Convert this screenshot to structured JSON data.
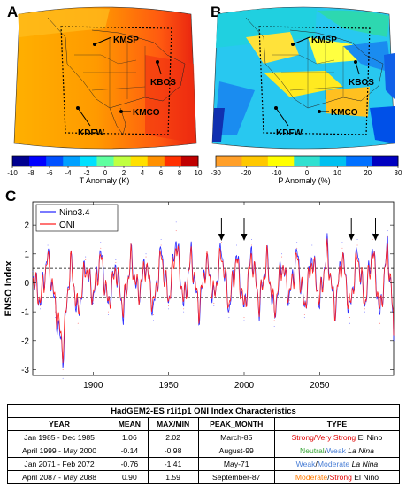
{
  "panels": {
    "a": {
      "letter": "A",
      "stations": [
        "KMSP",
        "KBOS",
        "KMCO",
        "KDFW"
      ],
      "colorbar": {
        "ticks": [
          "-10",
          "-8",
          "-6",
          "-4",
          "-2",
          "0",
          "2",
          "4",
          "6",
          "8",
          "10"
        ],
        "label": "T Anomaly  (K)",
        "colors": [
          "#00008f",
          "#0000ff",
          "#0050ff",
          "#00a0ff",
          "#00e0ff",
          "#60ffa0",
          "#c0ff40",
          "#ffe000",
          "#ff9000",
          "#ff3000",
          "#c00000"
        ]
      }
    },
    "b": {
      "letter": "B",
      "stations": [
        "KMSP",
        "KBOS",
        "KMCO",
        "KDFW"
      ],
      "colorbar": {
        "ticks": [
          "-30",
          "-20",
          "-10",
          "0",
          "10",
          "20",
          "30"
        ],
        "label": "P Anomaly (%)",
        "colors": [
          "#ff9f2a",
          "#ffc800",
          "#ffff00",
          "#30e0d0",
          "#00c0f0",
          "#0070ff",
          "#0000c0"
        ]
      }
    }
  },
  "chart_data": {
    "type": "line",
    "letter": "C",
    "ylabel": "ENSO Index",
    "xlabel": "",
    "xlim": [
      1860,
      2099
    ],
    "ylim": [
      -3.2,
      2.8
    ],
    "xticks": [
      1900,
      1950,
      2000,
      2050
    ],
    "yticks": [
      2,
      1,
      0,
      -1,
      -2,
      -3
    ],
    "legend": {
      "position": "top-left",
      "entries": [
        "Nino3.4",
        "ONI"
      ]
    },
    "series": [
      {
        "name": "Nino3.4",
        "color": "#2a2aff",
        "x": [
          1860,
          1865,
          1870,
          1875,
          1880,
          1885,
          1890,
          1895,
          1900,
          1905,
          1910,
          1915,
          1920,
          1925,
          1930,
          1935,
          1940,
          1945,
          1950,
          1955,
          1960,
          1965,
          1970,
          1975,
          1980,
          1985,
          1990,
          1995,
          2000,
          2005,
          2010,
          2015,
          2020,
          2025,
          2030,
          2035,
          2040,
          2045,
          2050,
          2055,
          2060,
          2065,
          2070,
          2075,
          2080,
          2085,
          2090,
          2095,
          2099
        ],
        "values": [
          0.4,
          -0.9,
          1.3,
          -1.2,
          -3.3,
          1.1,
          -1.6,
          0.9,
          -0.7,
          1.4,
          -1.1,
          0.8,
          -1.4,
          1.2,
          -0.6,
          1.0,
          -1.3,
          1.5,
          -0.9,
          2.1,
          -1.0,
          1.3,
          -1.4,
          1.1,
          -0.8,
          1.6,
          -1.2,
          1.3,
          -1.3,
          1.5,
          -1.1,
          1.2,
          -1.5,
          1.0,
          -0.7,
          1.4,
          -1.2,
          1.3,
          -0.9,
          1.6,
          -1.3,
          1.4,
          -1.4,
          1.5,
          -1.0,
          1.7,
          -1.6,
          1.8,
          -2.0
        ]
      },
      {
        "name": "ONI",
        "color": "#ff2020",
        "x": [
          1860,
          1865,
          1870,
          1875,
          1880,
          1885,
          1890,
          1895,
          1900,
          1905,
          1910,
          1915,
          1920,
          1925,
          1930,
          1935,
          1940,
          1945,
          1950,
          1955,
          1960,
          1965,
          1970,
          1975,
          1980,
          1985,
          1990,
          1995,
          2000,
          2005,
          2010,
          2015,
          2020,
          2025,
          2030,
          2035,
          2040,
          2045,
          2050,
          2055,
          2060,
          2065,
          2070,
          2075,
          2080,
          2085,
          2090,
          2095,
          2099
        ],
        "values": [
          0.3,
          -0.8,
          1.1,
          -1.0,
          -3.0,
          1.0,
          -1.4,
          0.8,
          -0.6,
          1.2,
          -1.0,
          0.7,
          -1.2,
          1.1,
          -0.5,
          0.9,
          -1.1,
          1.3,
          -0.8,
          1.8,
          -0.9,
          1.2,
          -1.2,
          1.0,
          -0.7,
          1.4,
          -1.0,
          1.1,
          -1.2,
          1.3,
          -1.0,
          1.1,
          -1.3,
          0.9,
          -0.6,
          1.2,
          -1.1,
          1.1,
          -0.8,
          1.4,
          -1.2,
          1.2,
          -1.2,
          1.3,
          -0.9,
          1.5,
          -1.4,
          1.6,
          -1.8
        ]
      }
    ],
    "reference_lines": [
      0.5,
      -0.5
    ],
    "event_arrows": [
      1985,
      2000,
      2071,
      2087
    ]
  },
  "table": {
    "title": "HadGEM2-ES r1i1p1 ONI Index Characteristics",
    "headers": [
      "YEAR",
      "MEAN",
      "MAX/MIN",
      "PEAK_MONTH",
      "TYPE"
    ],
    "rows": [
      {
        "year": "Jan 1985 - Dec 1985",
        "mean": "1.06",
        "maxmin": "2.02",
        "peak": "March-85",
        "type_a": "Strong",
        "sep": "/",
        "type_b": "Very Strong",
        "type_c": " El Nino"
      },
      {
        "year": "April 1999 - May 2000",
        "mean": "-0.14",
        "maxmin": "-0.98",
        "peak": "August-99",
        "type_a": "Neutral",
        "sep": "/",
        "type_b": "Weak",
        "type_c": " La Nina"
      },
      {
        "year": "Jan 2071 - Feb 2072",
        "mean": "-0.76",
        "maxmin": "-1.41",
        "peak": "May-71",
        "type_a": "Weak",
        "sep": "/",
        "type_b": "Moderate",
        "type_c": " La Nina"
      },
      {
        "year": "April 2087 - May 2088",
        "mean": "0.90",
        "maxmin": "1.59",
        "peak": "September-87",
        "type_a": "Moderate",
        "sep": "/",
        "type_b": "Strong",
        "type_c": " El Nino"
      }
    ]
  }
}
